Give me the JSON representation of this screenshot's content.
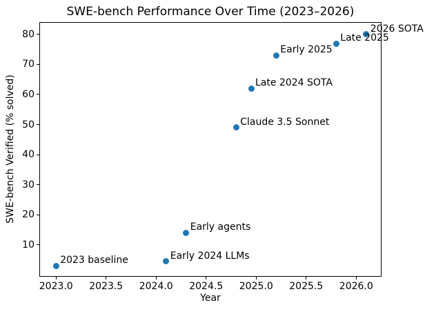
{
  "chart_data": {
    "type": "scatter",
    "title": "SWE-bench Performance Over Time (2023–2026)",
    "xlabel": "Year",
    "ylabel": "SWE-bench Verified (% solved)",
    "xlim": [
      2022.84,
      2026.26
    ],
    "ylim": [
      -0.9,
      83.9
    ],
    "x_ticks": [
      2023.0,
      2023.5,
      2024.0,
      2024.5,
      2025.0,
      2025.5,
      2026.0
    ],
    "x_tick_labels": [
      "2023.0",
      "2023.5",
      "2024.0",
      "2024.5",
      "2025.0",
      "2025.5",
      "2026.0"
    ],
    "y_ticks": [
      10,
      20,
      30,
      40,
      50,
      60,
      70,
      80
    ],
    "grid": false,
    "legend_position": "none",
    "marker_color": "#1f77b4",
    "points": [
      {
        "x": 2023.0,
        "y": 3,
        "label": "2023 baseline"
      },
      {
        "x": 2024.1,
        "y": 4.5,
        "label": "Early 2024 LLMs"
      },
      {
        "x": 2024.3,
        "y": 14,
        "label": "Early agents"
      },
      {
        "x": 2024.8,
        "y": 49,
        "label": "Claude 3.5 Sonnet"
      },
      {
        "x": 2024.95,
        "y": 62,
        "label": "Late 2024 SOTA"
      },
      {
        "x": 2025.2,
        "y": 73,
        "label": "Early 2025"
      },
      {
        "x": 2025.8,
        "y": 77,
        "label": "Late 2025"
      },
      {
        "x": 2026.1,
        "y": 80,
        "label": "2026 SOTA"
      }
    ]
  }
}
